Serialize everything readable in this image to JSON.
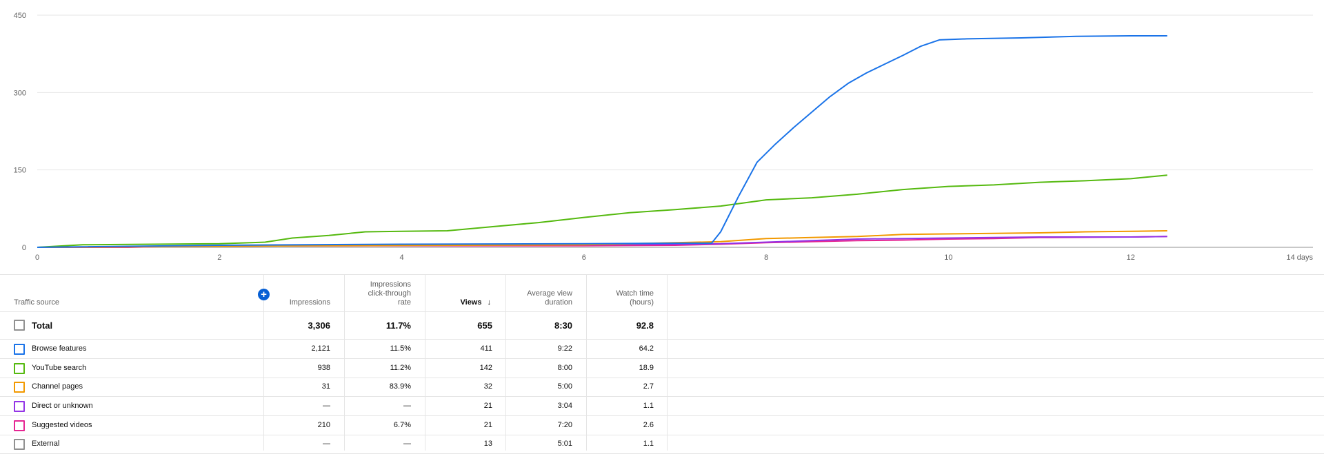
{
  "chart_data": {
    "type": "line",
    "xlim": [
      0,
      14
    ],
    "ylim": [
      0,
      450
    ],
    "x_ticks": [
      "0",
      "2",
      "4",
      "6",
      "8",
      "10",
      "12",
      "14 days"
    ],
    "y_ticks": [
      "450",
      "300",
      "150",
      "0"
    ],
    "grid": true,
    "series": [
      {
        "name": "Browse features",
        "color": "#1a73e8",
        "points": [
          [
            0,
            0
          ],
          [
            2,
            4
          ],
          [
            4,
            6
          ],
          [
            6,
            7
          ],
          [
            7,
            8
          ],
          [
            7.4,
            8
          ],
          [
            7.5,
            30
          ],
          [
            7.7,
            100
          ],
          [
            7.9,
            165
          ],
          [
            8.1,
            200
          ],
          [
            8.3,
            232
          ],
          [
            8.5,
            262
          ],
          [
            8.7,
            292
          ],
          [
            8.9,
            318
          ],
          [
            9.1,
            338
          ],
          [
            9.3,
            355
          ],
          [
            9.5,
            372
          ],
          [
            9.7,
            390
          ],
          [
            9.9,
            402
          ],
          [
            10.2,
            404
          ],
          [
            10.8,
            406
          ],
          [
            11.4,
            409
          ],
          [
            12,
            410
          ],
          [
            12.4,
            410
          ]
        ]
      },
      {
        "name": "YouTube search",
        "color": "#55b90f",
        "points": [
          [
            0,
            0
          ],
          [
            0.5,
            5
          ],
          [
            2,
            7
          ],
          [
            2.5,
            10
          ],
          [
            2.8,
            18
          ],
          [
            3.2,
            23
          ],
          [
            3.6,
            30
          ],
          [
            4,
            31
          ],
          [
            4.5,
            32
          ],
          [
            5,
            40
          ],
          [
            5.5,
            48
          ],
          [
            6,
            58
          ],
          [
            6.5,
            67
          ],
          [
            7,
            73
          ],
          [
            7.5,
            80
          ],
          [
            8,
            92
          ],
          [
            8.5,
            96
          ],
          [
            9,
            103
          ],
          [
            9.5,
            112
          ],
          [
            10,
            118
          ],
          [
            10.5,
            121
          ],
          [
            11,
            126
          ],
          [
            11.5,
            129
          ],
          [
            12,
            133
          ],
          [
            12.4,
            140
          ]
        ]
      },
      {
        "name": "Channel pages",
        "color": "#f29900",
        "points": [
          [
            0,
            0
          ],
          [
            3,
            3
          ],
          [
            6,
            5
          ],
          [
            6.5,
            7
          ],
          [
            7,
            9
          ],
          [
            7.5,
            11
          ],
          [
            8,
            17
          ],
          [
            8.5,
            19
          ],
          [
            9,
            21
          ],
          [
            9.5,
            25
          ],
          [
            10,
            26
          ],
          [
            11,
            28
          ],
          [
            11.5,
            30
          ],
          [
            12,
            31
          ],
          [
            12.4,
            32
          ]
        ]
      },
      {
        "name": "Direct or unknown",
        "color": "#9334e6",
        "points": [
          [
            0,
            0
          ],
          [
            3,
            3
          ],
          [
            6,
            5
          ],
          [
            7,
            6
          ],
          [
            7.5,
            7
          ],
          [
            8,
            10
          ],
          [
            8.5,
            13
          ],
          [
            9,
            16
          ],
          [
            10,
            18
          ],
          [
            11,
            20
          ],
          [
            12,
            20
          ],
          [
            12.4,
            21
          ]
        ]
      },
      {
        "name": "Suggested videos",
        "color": "#e52592",
        "points": [
          [
            0,
            0
          ],
          [
            1,
            0
          ],
          [
            1.5,
            2
          ],
          [
            3,
            3
          ],
          [
            6,
            3
          ],
          [
            7,
            4
          ],
          [
            7.5,
            6
          ],
          [
            8,
            9
          ],
          [
            8.5,
            11
          ],
          [
            9,
            13
          ],
          [
            9.5,
            14
          ],
          [
            10,
            16
          ],
          [
            10.5,
            17
          ],
          [
            11,
            19
          ],
          [
            12,
            20
          ],
          [
            12.4,
            21
          ]
        ]
      }
    ]
  },
  "table": {
    "add_icon": "plus-circle-icon",
    "headers": {
      "source": "Traffic source",
      "impressions": "Impressions",
      "ctr_line1": "Impressions",
      "ctr_line2": "click-through",
      "ctr_line3": "rate",
      "views": "Views",
      "avd_line1": "Average view",
      "avd_line2": "duration",
      "watch_line1": "Watch time",
      "watch_line2": "(hours)"
    },
    "sort_icon": "arrow-down-icon",
    "total": {
      "label": "Total",
      "impressions": "3,306",
      "ctr": "11.7%",
      "views": "655",
      "avd": "8:30",
      "watch": "92.8",
      "color": "#909090"
    },
    "rows": [
      {
        "label": "Browse features",
        "impressions": "2,121",
        "ctr": "11.5%",
        "views": "411",
        "avd": "9:22",
        "watch": "64.2",
        "color": "#1a73e8"
      },
      {
        "label": "YouTube search",
        "impressions": "938",
        "ctr": "11.2%",
        "views": "142",
        "avd": "8:00",
        "watch": "18.9",
        "color": "#55b90f"
      },
      {
        "label": "Channel pages",
        "impressions": "31",
        "ctr": "83.9%",
        "views": "32",
        "avd": "5:00",
        "watch": "2.7",
        "color": "#f29900"
      },
      {
        "label": "Direct or unknown",
        "impressions": "—",
        "ctr": "—",
        "views": "21",
        "avd": "3:04",
        "watch": "1.1",
        "color": "#9334e6"
      },
      {
        "label": "Suggested videos",
        "impressions": "210",
        "ctr": "6.7%",
        "views": "21",
        "avd": "7:20",
        "watch": "2.6",
        "color": "#e52592"
      },
      {
        "label": "External",
        "impressions": "—",
        "ctr": "—",
        "views": "13",
        "avd": "5:01",
        "watch": "1.1",
        "color": "#909090"
      }
    ]
  }
}
